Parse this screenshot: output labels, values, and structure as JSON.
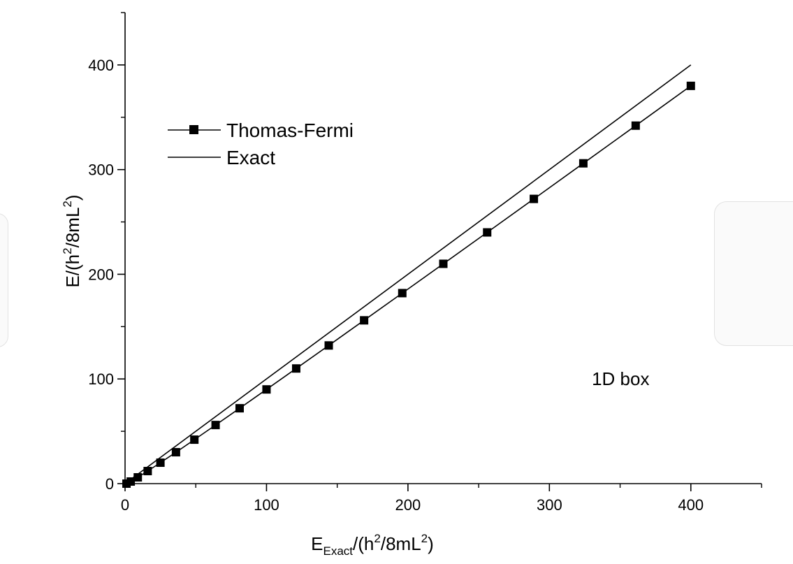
{
  "chart_data": {
    "type": "line",
    "title": "",
    "xlabel": {
      "main": "E",
      "sub": "Exact",
      "rest_1": "/(h",
      "sup_1": "2",
      "rest_2": "/8mL",
      "sup_2": "2",
      "rest_3": ")"
    },
    "ylabel": {
      "main": "E/(h",
      "sup_1": "2",
      "rest_1": "/8mL",
      "sup_2": "2",
      "rest_2": ")"
    },
    "xlim": [
      0,
      450
    ],
    "ylim": [
      0,
      450
    ],
    "x_ticks": [
      {
        "value": 0,
        "label": "0"
      },
      {
        "value": 100,
        "label": "100"
      },
      {
        "value": 200,
        "label": "200"
      },
      {
        "value": 300,
        "label": "300"
      },
      {
        "value": 400,
        "label": "400"
      }
    ],
    "y_ticks": [
      {
        "value": 0,
        "label": "0"
      },
      {
        "value": 100,
        "label": "100"
      },
      {
        "value": 200,
        "label": "200"
      },
      {
        "value": 300,
        "label": "300"
      },
      {
        "value": 400,
        "label": "400"
      }
    ],
    "x_minor_step": 50,
    "y_minor_step": 50,
    "grid": false,
    "legend_position": "top-left",
    "series": [
      {
        "name": "Thomas-Fermi",
        "style": "line-with-square-markers",
        "color": "#000000",
        "x": [
          1,
          4,
          9,
          16,
          25,
          36,
          49,
          64,
          81,
          100,
          121,
          144,
          169,
          196,
          225,
          256,
          289,
          324,
          361,
          400
        ],
        "y": [
          0,
          2,
          6,
          12,
          20,
          30,
          42,
          56,
          72,
          90,
          110,
          132,
          156,
          182,
          210,
          240,
          272,
          306,
          342,
          380
        ]
      },
      {
        "name": "Exact",
        "style": "line",
        "color": "#000000",
        "x": [
          1,
          400
        ],
        "y": [
          1,
          400
        ]
      }
    ],
    "annotations": [
      {
        "text": "1D box",
        "x": 330,
        "y": 100
      }
    ]
  }
}
